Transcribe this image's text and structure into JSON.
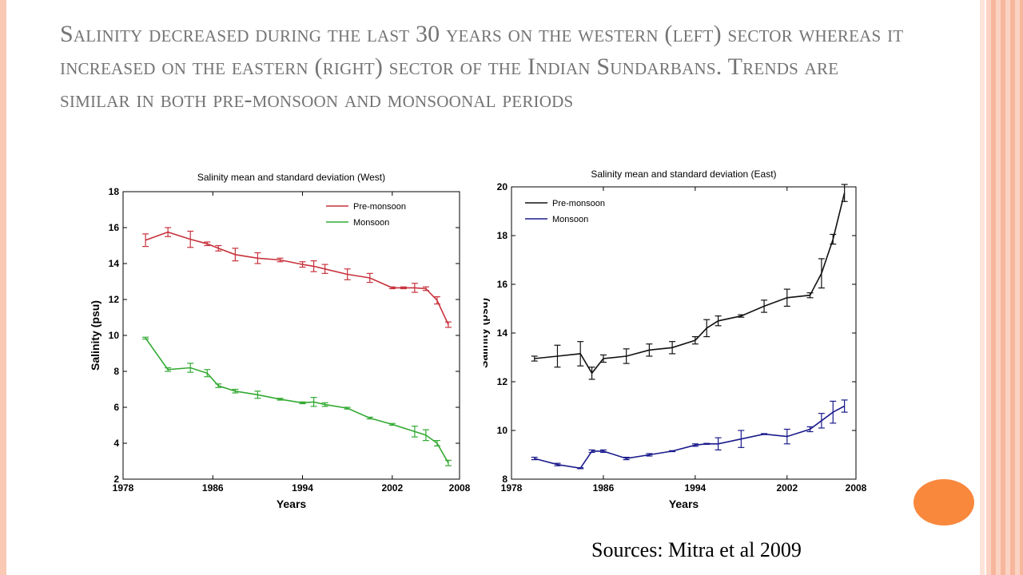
{
  "slide": {
    "title": "Salinity decreased during the last 30 years on the western (left) sector whereas it increased on the eastern (right) sector of the Indian Sundarbans. Trends are similar in both pre-monsoon and monsoonal periods",
    "source": "Sources: Mitra et al 2009"
  },
  "colors": {
    "west_premonsoon": "#c8323c",
    "west_monsoon": "#33aa33",
    "east_premonsoon": "#111111",
    "east_monsoon": "#1a1a8c",
    "accent_circle": "#f9883c"
  },
  "chart_data": [
    {
      "type": "line",
      "title": "Salinity mean and standard deviation (West)",
      "xlabel": "Years",
      "ylabel": "Salinity (psu)",
      "xlim": [
        1978,
        2008
      ],
      "ylim": [
        2,
        18
      ],
      "xticks": [
        1978,
        1986,
        1994,
        2002,
        2008
      ],
      "yticks": [
        2,
        4,
        6,
        8,
        10,
        12,
        14,
        16,
        18
      ],
      "legend_position": "top-right",
      "series": [
        {
          "name": "Pre-monsoon",
          "color": "#c8323c",
          "x": [
            1980,
            1982,
            1984,
            1985.5,
            1986.5,
            1988,
            1990,
            1992,
            1994,
            1995,
            1996,
            1998,
            2000,
            2002,
            2003,
            2004,
            2005,
            2006,
            2007
          ],
          "y": [
            15.3,
            15.75,
            15.35,
            15.1,
            14.85,
            14.5,
            14.3,
            14.2,
            13.95,
            13.85,
            13.7,
            13.4,
            13.2,
            12.65,
            12.65,
            12.65,
            12.6,
            11.95,
            10.6
          ],
          "err": [
            0.35,
            0.25,
            0.45,
            0.1,
            0.15,
            0.35,
            0.3,
            0.1,
            0.15,
            0.3,
            0.25,
            0.3,
            0.25,
            0.05,
            0.05,
            0.25,
            0.1,
            0.2,
            0.15
          ]
        },
        {
          "name": "Monsoon",
          "color": "#33aa33",
          "x": [
            1980,
            1982,
            1984,
            1985.5,
            1986.5,
            1988,
            1990,
            1992,
            1994,
            1995,
            1996,
            1998,
            2000,
            2002,
            2004,
            2005,
            2006,
            2007
          ],
          "y": [
            9.85,
            8.1,
            8.2,
            7.9,
            7.2,
            6.9,
            6.7,
            6.45,
            6.25,
            6.3,
            6.15,
            5.95,
            5.4,
            5.05,
            4.65,
            4.45,
            4.0,
            2.9
          ],
          "err": [
            0.05,
            0.1,
            0.25,
            0.2,
            0.1,
            0.1,
            0.2,
            0.05,
            0.05,
            0.25,
            0.1,
            0.05,
            0.05,
            0.05,
            0.3,
            0.3,
            0.15,
            0.15
          ]
        }
      ]
    },
    {
      "type": "line",
      "title": "Salinity mean and standard deviation (East)",
      "xlabel": "Years",
      "ylabel": "Salinity (psu)",
      "xlim": [
        1978,
        2008
      ],
      "ylim": [
        8,
        20
      ],
      "xticks": [
        1978,
        1986,
        1994,
        2002,
        2008
      ],
      "yticks": [
        8,
        10,
        12,
        14,
        16,
        18,
        20
      ],
      "legend_position": "top-left",
      "series": [
        {
          "name": "Pre-monsoon",
          "color": "#111111",
          "x": [
            1980,
            1982,
            1984,
            1985,
            1986,
            1988,
            1990,
            1992,
            1994,
            1995,
            1996,
            1998,
            2000,
            2002,
            2004,
            2005,
            2006,
            2007
          ],
          "y": [
            12.95,
            13.05,
            13.15,
            12.35,
            12.95,
            13.05,
            13.3,
            13.4,
            13.7,
            14.2,
            14.5,
            14.7,
            15.1,
            15.45,
            15.55,
            16.45,
            17.85,
            19.75
          ],
          "err": [
            0.1,
            0.45,
            0.5,
            0.25,
            0.15,
            0.3,
            0.25,
            0.25,
            0.15,
            0.35,
            0.2,
            0.05,
            0.25,
            0.35,
            0.1,
            0.6,
            0.2,
            0.35
          ]
        },
        {
          "name": "Monsoon",
          "color": "#1a1a8c",
          "x": [
            1980,
            1982,
            1984,
            1985,
            1986,
            1988,
            1990,
            1992,
            1994,
            1995,
            1996,
            1998,
            2000,
            2002,
            2004,
            2005,
            2006,
            2007
          ],
          "y": [
            8.85,
            8.6,
            8.45,
            9.15,
            9.15,
            8.85,
            9.0,
            9.15,
            9.4,
            9.45,
            9.45,
            9.65,
            9.85,
            9.75,
            10.05,
            10.4,
            10.75,
            11.0
          ],
          "err": [
            0.05,
            0.05,
            0.02,
            0.05,
            0.05,
            0.05,
            0.05,
            0.02,
            0.05,
            0.02,
            0.25,
            0.35,
            0.02,
            0.3,
            0.1,
            0.3,
            0.45,
            0.25
          ]
        }
      ]
    }
  ]
}
